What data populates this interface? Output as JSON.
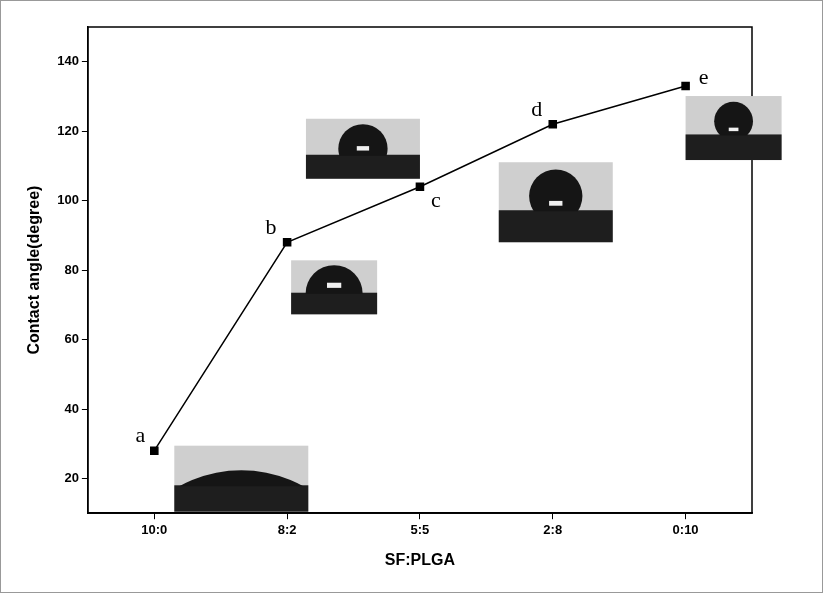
{
  "chart_data": {
    "type": "line",
    "categories": [
      "10:0",
      "8:2",
      "5:5",
      "2:8",
      "0:10"
    ],
    "values": [
      28,
      88,
      104,
      122,
      133
    ],
    "annotations": [
      "a",
      "b",
      "c",
      "d",
      "e"
    ],
    "x_label": "SF:PLGA",
    "y_label": "Contact angle(degree)",
    "ylim": [
      10,
      150
    ],
    "yticks": [
      20,
      40,
      60,
      80,
      100,
      120,
      140
    ],
    "color": "#000000",
    "marker": "square",
    "line_style": "solid",
    "grid": false
  }
}
